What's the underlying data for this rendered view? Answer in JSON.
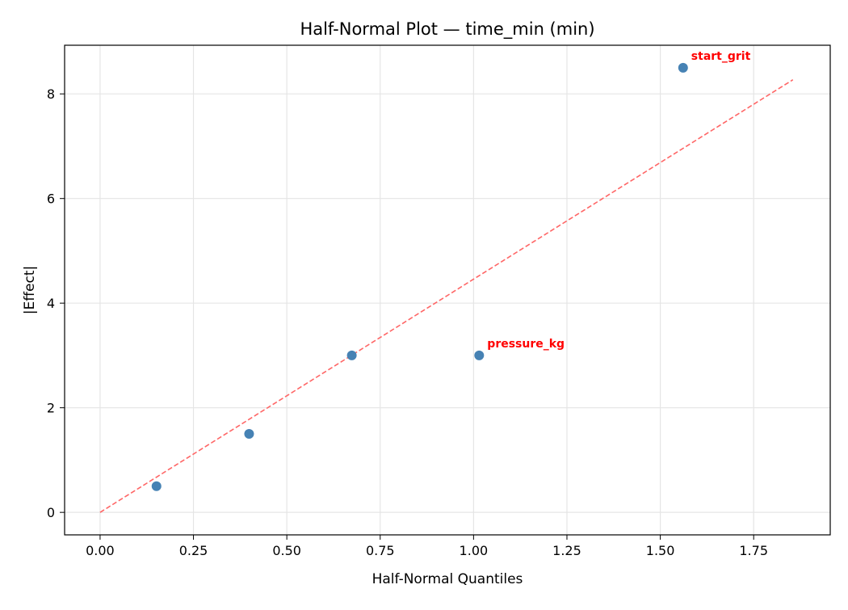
{
  "chart_data": {
    "type": "scatter",
    "title": "Half-Normal Plot — time_min (min)",
    "xlabel": "Half-Normal Quantiles",
    "ylabel": "|Effect|",
    "xlim": [
      -0.095,
      1.955
    ],
    "ylim": [
      -0.43,
      8.93
    ],
    "xticks": [
      0.0,
      0.25,
      0.5,
      0.75,
      1.0,
      1.25,
      1.5,
      1.75
    ],
    "xtick_labels": [
      "0.00",
      "0.25",
      "0.50",
      "0.75",
      "1.00",
      "1.25",
      "1.50",
      "1.75"
    ],
    "yticks": [
      0,
      2,
      4,
      6,
      8
    ],
    "ytick_labels": [
      "0",
      "2",
      "4",
      "6",
      "8"
    ],
    "grid": true,
    "points": [
      {
        "x": 0.151,
        "y": 0.5,
        "label": ""
      },
      {
        "x": 0.399,
        "y": 1.5,
        "label": ""
      },
      {
        "x": 0.674,
        "y": 3.0,
        "label": ""
      },
      {
        "x": 1.015,
        "y": 3.0,
        "label": "pressure_kg"
      },
      {
        "x": 1.561,
        "y": 8.5,
        "label": "start_grit"
      }
    ],
    "reference_line": {
      "x": [
        0,
        1.855
      ],
      "y": [
        0,
        8.27
      ],
      "style": "dashed"
    },
    "colors": {
      "points": "#4682b4",
      "line": "#ff6666",
      "labels": "#ff0000",
      "grid": "#e5e5e5"
    }
  }
}
